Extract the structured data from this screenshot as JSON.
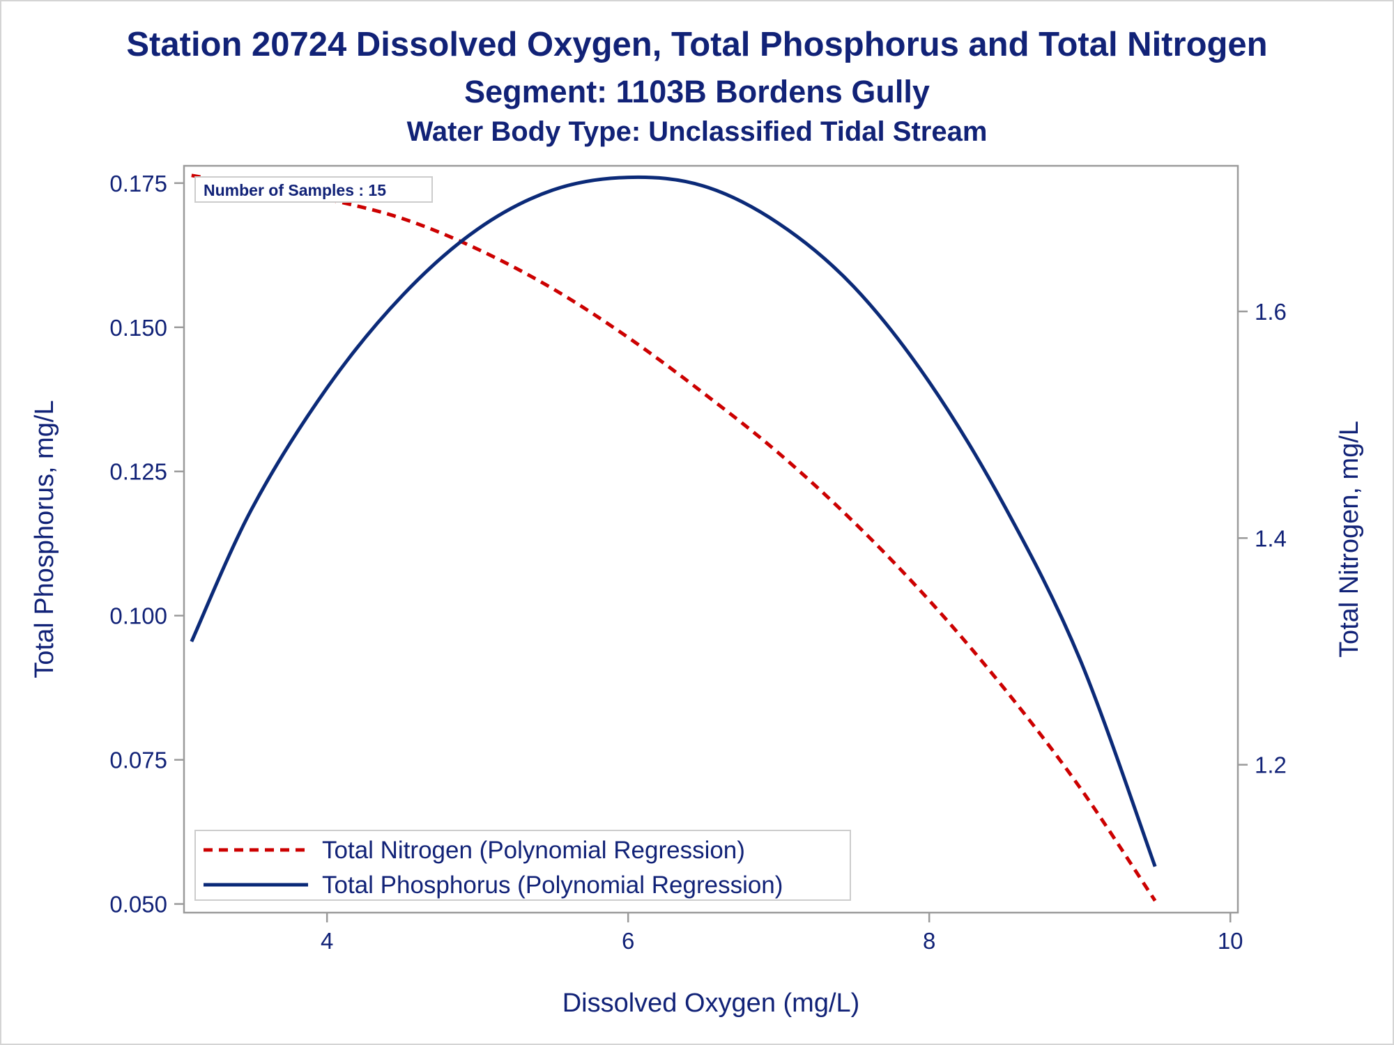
{
  "titles": {
    "line1": "Station 20724  Dissolved Oxygen, Total Phosphorus and Total Nitrogen",
    "line2": "Segment: 1103B  Bordens Gully",
    "line3": "Water Body Type: Unclassified Tidal Stream"
  },
  "inset_label": "Number of Samples : 15",
  "colors": {
    "phosphorus": "#0b2a78",
    "nitrogen": "#cc0000",
    "text": "#112277",
    "axis": "#9a9a9a"
  },
  "chart_data": {
    "type": "line",
    "title": "Station 20724  Dissolved Oxygen, Total Phosphorus and Total Nitrogen",
    "subtitle": [
      "Segment: 1103B  Bordens Gully",
      "Water Body Type: Unclassified Tidal Stream"
    ],
    "xlabel": "Dissolved Oxygen (mg/L)",
    "ylabel": "Total Phosphorus, mg/L",
    "y2label": "Total Nitrogen, mg/L",
    "xlim": [
      3.05,
      10.05
    ],
    "ylim": [
      0.0485,
      0.178
    ],
    "y2lim": [
      1.0695,
      1.7285
    ],
    "x_ticks": [
      4,
      6,
      8,
      10
    ],
    "y_ticks": [
      0.05,
      0.075,
      0.1,
      0.125,
      0.15,
      0.175
    ],
    "y_tick_labels": [
      "0.050",
      "0.075",
      "0.100",
      "0.125",
      "0.150",
      "0.175"
    ],
    "y2_ticks": [
      1.2,
      1.4,
      1.6
    ],
    "y2_tick_labels": [
      "1.2",
      "1.4",
      "1.6"
    ],
    "grid": false,
    "legend_position": "bottom-left",
    "series": [
      {
        "name": "Total Nitrogen (Polynomial Regression)",
        "axis": "right",
        "style": "dashed",
        "x": [
          3.1,
          3.5,
          4.0,
          4.5,
          5.0,
          5.5,
          6.0,
          6.5,
          7.0,
          7.5,
          8.0,
          8.5,
          9.0,
          9.5
        ],
        "values": [
          1.72,
          1.711,
          1.699,
          1.682,
          1.655,
          1.62,
          1.577,
          1.528,
          1.475,
          1.414,
          1.345,
          1.267,
          1.18,
          1.08
        ]
      },
      {
        "name": "Total Phosphorus (Polynomial Regression)",
        "axis": "left",
        "style": "solid",
        "x": [
          3.1,
          3.5,
          4.0,
          4.5,
          5.0,
          5.5,
          6.0,
          6.5,
          7.0,
          7.5,
          8.0,
          8.5,
          9.0,
          9.5
        ],
        "values": [
          0.0955,
          0.1185,
          0.1395,
          0.1555,
          0.167,
          0.1738,
          0.176,
          0.1745,
          0.168,
          0.157,
          0.1405,
          0.119,
          0.0925,
          0.0565
        ]
      }
    ]
  }
}
